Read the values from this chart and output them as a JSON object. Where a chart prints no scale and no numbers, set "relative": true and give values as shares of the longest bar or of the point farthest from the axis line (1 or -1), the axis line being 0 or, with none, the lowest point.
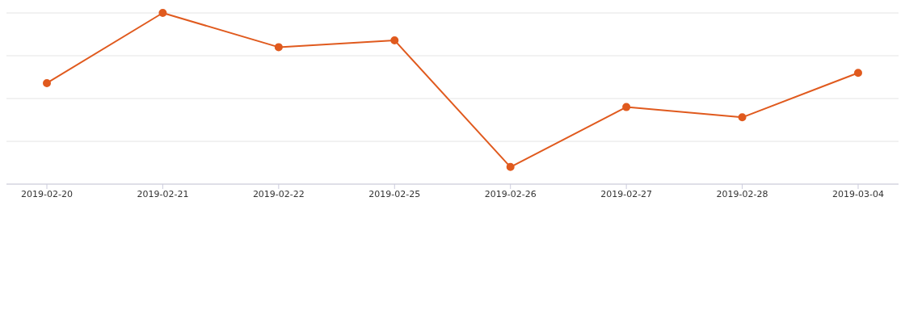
{
  "chart_data": {
    "type": "line",
    "relative": true,
    "categories": [
      "2019-02-20",
      "2019-02-21",
      "2019-02-22",
      "2019-02-25",
      "2019-02-26",
      "2019-02-27",
      "2019-02-28",
      "2019-03-04"
    ],
    "series": [
      {
        "color": "#e05a1e",
        "values": [
          0.59,
          1,
          0.8,
          0.84,
          0.1,
          0.45,
          0.39,
          0.65
        ]
      }
    ],
    "grid": "y",
    "marker": "circle"
  }
}
